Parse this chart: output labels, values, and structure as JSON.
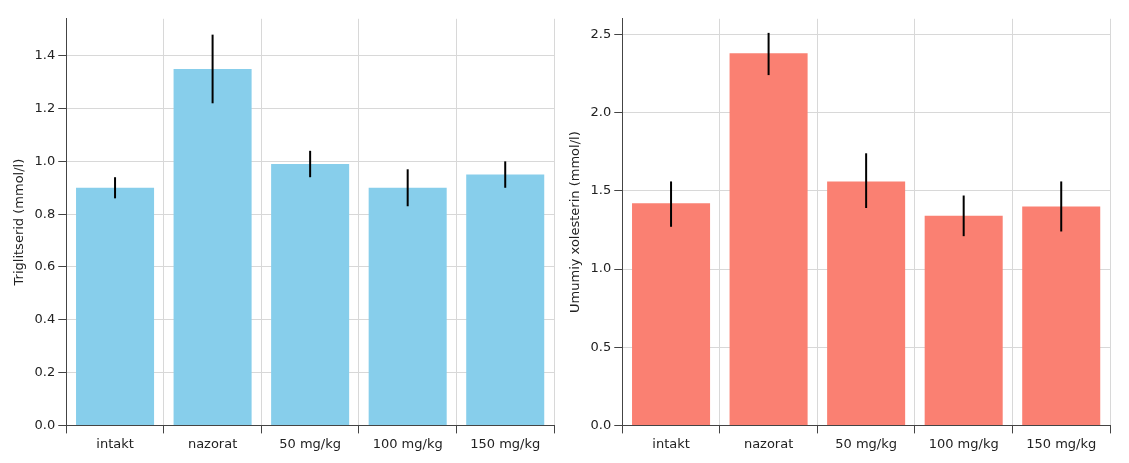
{
  "chart_data": [
    {
      "type": "bar",
      "ylabel": "Triglitserid (mmol/l)",
      "categories": [
        "intakt",
        "nazorat",
        "50 mg/kg",
        "100 mg/kg",
        "150 mg/kg"
      ],
      "values": [
        0.9,
        1.35,
        0.99,
        0.9,
        0.95
      ],
      "color": "#87ceeb",
      "errors": [
        [
          0.86,
          0.94
        ],
        [
          1.22,
          1.48
        ],
        [
          0.94,
          1.04
        ],
        [
          0.83,
          0.97
        ],
        [
          0.9,
          1.0
        ]
      ],
      "ylim": [
        0,
        1.54
      ],
      "yticks": [
        {
          "value": 0,
          "label": "0.0"
        },
        0.2,
        0.4,
        0.6,
        0.8,
        {
          "value": 1,
          "label": "1.0"
        },
        1.2,
        1.4
      ],
      "grid": true
    },
    {
      "type": "bar",
      "ylabel": "Umumiy xolesterin (mmol/l)",
      "categories": [
        "intakt",
        "nazorat",
        "50 mg/kg",
        "100 mg/kg",
        "150 mg/kg"
      ],
      "values": [
        1.42,
        2.38,
        1.56,
        1.34,
        1.4
      ],
      "color": "#fa8072",
      "errors": [
        [
          1.27,
          1.56
        ],
        [
          2.24,
          2.51
        ],
        [
          1.39,
          1.74
        ],
        [
          1.21,
          1.47
        ],
        [
          1.24,
          1.56
        ]
      ],
      "ylim": [
        0,
        2.6
      ],
      "yticks": [
        {
          "value": 0,
          "label": "0.0"
        },
        0.5,
        {
          "value": 1,
          "label": "1.0"
        },
        1.5,
        {
          "value": 2,
          "label": "2.0"
        },
        2.5
      ],
      "grid": true
    }
  ]
}
